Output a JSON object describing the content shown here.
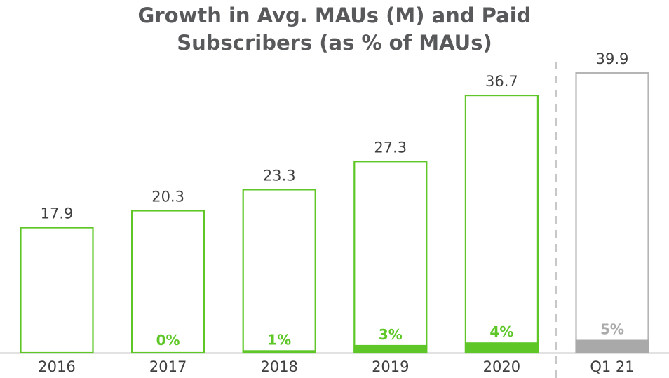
{
  "chart_data": {
    "type": "bar",
    "title_lines": [
      "Growth in Avg. MAUs (M) and Paid",
      "Subscribers (as % of MAUs)"
    ],
    "categories": [
      "2016",
      "2017",
      "2018",
      "2019",
      "2020",
      "Q1 21"
    ],
    "series": [
      {
        "name": "Avg. MAUs (M)",
        "values": [
          17.9,
          20.3,
          23.3,
          27.3,
          36.7,
          39.9
        ]
      },
      {
        "name": "Paid Subscribers (as % of MAUs)",
        "values": [
          null,
          0,
          1,
          3,
          4,
          5
        ]
      }
    ],
    "value_labels": [
      "17.9",
      "20.3",
      "23.3",
      "27.3",
      "36.7",
      "39.9"
    ],
    "pct_labels": [
      "",
      "0%",
      "1%",
      "3%",
      "4%",
      "5%"
    ],
    "highlight_last_category": true,
    "ylim": [
      0,
      39.9
    ],
    "grid": false,
    "legend": "none",
    "colors": {
      "bar_outline": "#5ec727",
      "bar_fill": "#5ec727",
      "pct_text": "#5ec727",
      "last_outline": "#b5b5b5",
      "last_fill": "#a9a9a9",
      "last_pct_text": "#ababab",
      "title": "#58595b",
      "label_text": "#3f3f3f",
      "baseline": "#8c8c8c",
      "divider": "#c8c8c8"
    }
  }
}
